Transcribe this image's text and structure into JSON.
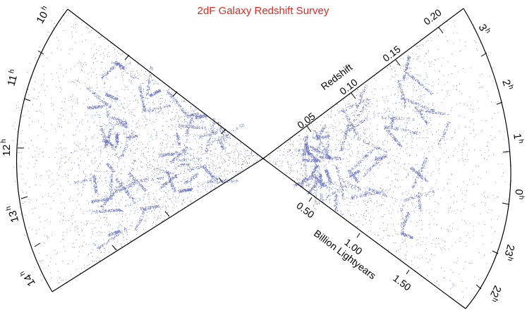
{
  "title": "2dF Galaxy Redshift Survey",
  "redshift_axis": {
    "label": "Redshift",
    "ticks": [
      "0.05",
      "0.10",
      "0.15",
      "0.20"
    ]
  },
  "distance_axis": {
    "label": "Billion Lightyears",
    "ticks": [
      "0.50",
      "1.00",
      "1.50"
    ]
  },
  "left_wedge": {
    "hours": [
      {
        "h": "10",
        "s": "h"
      },
      {
        "h": "11",
        "s": "h"
      },
      {
        "h": "12",
        "s": "h"
      },
      {
        "h": "13",
        "s": "h"
      },
      {
        "h": "14",
        "s": "h"
      }
    ]
  },
  "right_wedge": {
    "hours": [
      {
        "h": "3",
        "s": "h"
      },
      {
        "h": "2",
        "s": "h"
      },
      {
        "h": "1",
        "s": "h"
      },
      {
        "h": "0",
        "s": "h"
      },
      {
        "h": "23",
        "s": "h"
      },
      {
        "h": "22",
        "s": "h"
      }
    ]
  },
  "colors": {
    "galaxies": "#3a46a8",
    "title": "#e8281f"
  }
}
